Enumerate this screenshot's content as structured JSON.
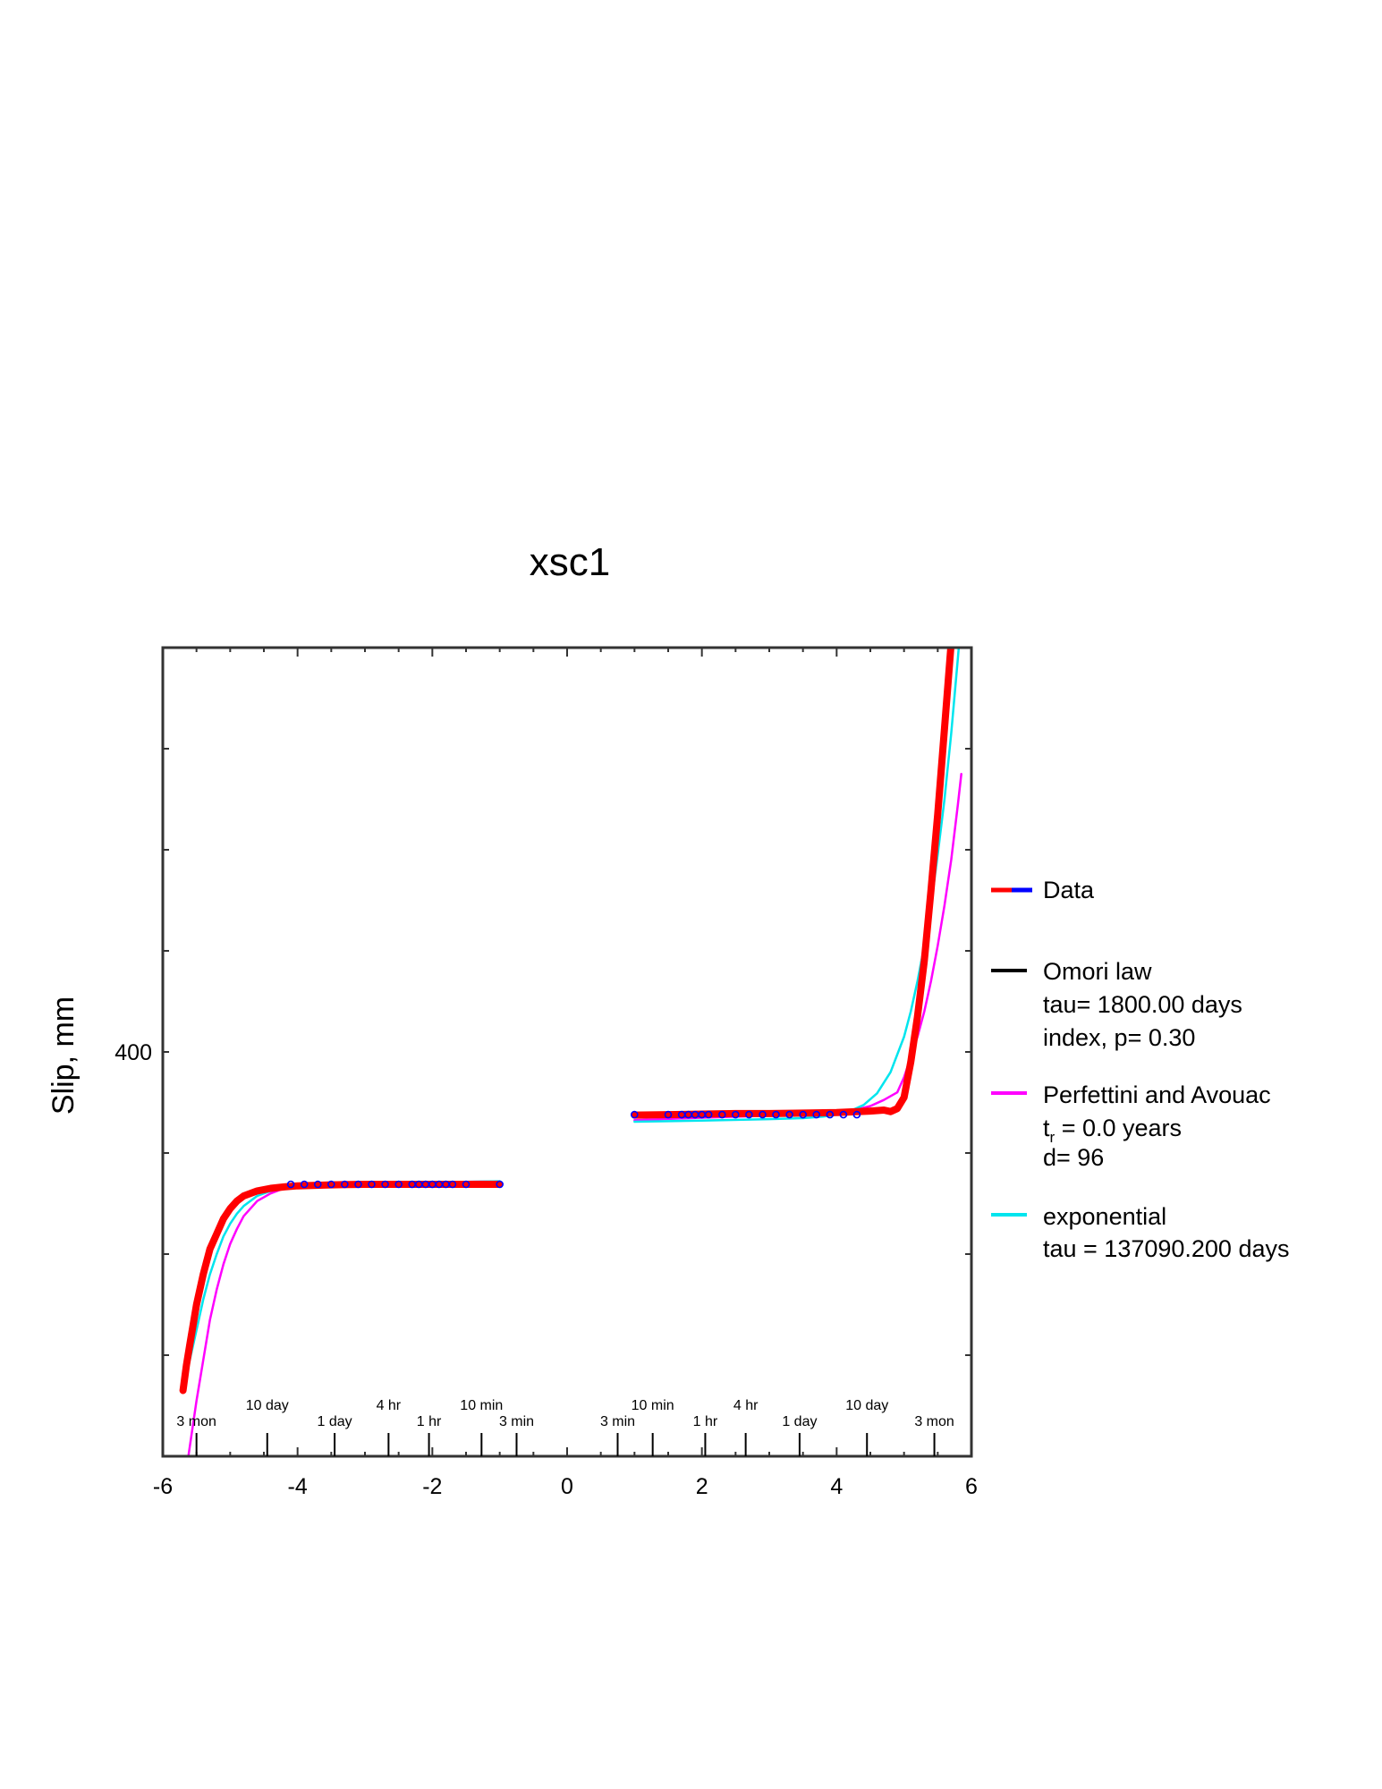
{
  "chart_data": {
    "type": "scatter",
    "title": "xsc1",
    "xlabel": "",
    "ylabel": "Slip, mm",
    "xlim": [
      -6,
      6
    ],
    "x_ticks": [
      -6,
      -4,
      -2,
      0,
      2,
      4,
      6
    ],
    "ylim": [
      320,
      480
    ],
    "y_tick_labels": [
      {
        "value": 400,
        "label": "400"
      }
    ],
    "grid": false,
    "legend_position": "right",
    "time_scale_labels": [
      {
        "x": -5.5,
        "row": "lower",
        "label": "3 mon"
      },
      {
        "x": -4.45,
        "row": "upper",
        "label": "10 day"
      },
      {
        "x": -3.45,
        "row": "lower",
        "label": "1 day"
      },
      {
        "x": -2.65,
        "row": "upper",
        "label": "4 hr"
      },
      {
        "x": -2.05,
        "row": "lower",
        "label": "1 hr"
      },
      {
        "x": -1.27,
        "row": "upper",
        "label": "10 min"
      },
      {
        "x": -0.75,
        "row": "lower",
        "label": "3 min"
      },
      {
        "x": 0.75,
        "row": "lower",
        "label": "3 min"
      },
      {
        "x": 1.27,
        "row": "upper",
        "label": "10 min"
      },
      {
        "x": 2.05,
        "row": "lower",
        "label": "1 hr"
      },
      {
        "x": 2.65,
        "row": "upper",
        "label": "4 hr"
      },
      {
        "x": 3.45,
        "row": "lower",
        "label": "1 day"
      },
      {
        "x": 4.45,
        "row": "upper",
        "label": "10 day"
      },
      {
        "x": 5.45,
        "row": "lower",
        "label": "3 mon"
      }
    ],
    "series": [
      {
        "name": "Data",
        "style": "thick-line-and-circles",
        "color": "#ff0000",
        "marker_color": "#0000ff",
        "segments": [
          {
            "x": [
              -5.7,
              -5.65,
              -5.6,
              -5.5,
              -5.4,
              -5.3,
              -5.2,
              -5.1,
              -5.0,
              -4.9,
              -4.8,
              -4.6,
              -4.4,
              -4.2,
              -4.0,
              -3.5,
              -3.0,
              -2.5,
              -2.0,
              -1.5,
              -1.0
            ],
            "y": [
              333,
              338,
              342,
              350,
              356,
              361,
              364,
              367,
              369,
              370.5,
              371.5,
              372.5,
              373,
              373.3,
              373.5,
              373.7,
              373.8,
              373.8,
              373.8,
              373.8,
              373.8
            ]
          },
          {
            "x": [
              1.0,
              1.5,
              2.0,
              2.5,
              3.0,
              3.5,
              4.0,
              4.3,
              4.5,
              4.7,
              4.8,
              4.9,
              5.0,
              5.1,
              5.2,
              5.3,
              5.4,
              5.5,
              5.6,
              5.7,
              5.8,
              5.85
            ],
            "y": [
              387.5,
              387.6,
              387.7,
              387.8,
              387.8,
              387.9,
              388,
              388.2,
              388.3,
              388.5,
              388.2,
              388.8,
              391,
              398,
              407,
              418,
              432,
              447,
              464,
              481,
              498,
              504
            ]
          }
        ]
      },
      {
        "name": "Omori law",
        "color": "#000000",
        "segments": []
      },
      {
        "name": "Perfettini and Avouac",
        "color": "#ff00ff",
        "segments": [
          {
            "x": [
              -5.62,
              -5.5,
              -5.4,
              -5.3,
              -5.2,
              -5.1,
              -5.0,
              -4.9,
              -4.8,
              -4.6,
              -4.4,
              -4.2,
              -4.0,
              -3.5,
              -3.0,
              -2.5,
              -2.0,
              -1.5,
              -1.0
            ],
            "y": [
              320,
              331,
              339,
              347,
              353,
              358,
              362,
              365,
              367.5,
              370.5,
              372,
              373,
              373.5,
              374,
              374.2,
              374.3,
              374.3,
              374.3,
              374.4
            ]
          },
          {
            "x": [
              1.0,
              2.0,
              3.0,
              3.5,
              4.0,
              4.3,
              4.5,
              4.7,
              4.9,
              5.0,
              5.1,
              5.2,
              5.3,
              5.4,
              5.5,
              5.6,
              5.7,
              5.8,
              5.85
            ],
            "y": [
              386.5,
              387,
              387.4,
              387.7,
              388.1,
              388.6,
              389.3,
              390.5,
              392,
              395,
              399,
              403,
              408,
              414,
              421,
              429,
              438,
              449,
              455
            ]
          }
        ]
      },
      {
        "name": "exponential",
        "color": "#00e5ee",
        "segments": [
          {
            "x": [
              -5.7,
              -5.6,
              -5.5,
              -5.4,
              -5.3,
              -5.2,
              -5.1,
              -5.0,
              -4.9,
              -4.8,
              -4.6,
              -4.4,
              -4.2,
              -4.0,
              -3.5,
              -3.0,
              -2.5,
              -2.0,
              -1.5,
              -1.0
            ],
            "y": [
              333,
              339,
              345,
              351,
              356,
              360,
              363.5,
              366,
              368,
              369.5,
              371.5,
              372.5,
              373.2,
              373.6,
              374,
              374.2,
              374.3,
              374.3,
              374.3,
              374.4
            ]
          },
          {
            "x": [
              1.0,
              2.0,
              3.0,
              3.5,
              3.8,
              4.0,
              4.2,
              4.4,
              4.6,
              4.8,
              5.0,
              5.1,
              5.2,
              5.3,
              5.4,
              5.5,
              5.6,
              5.7,
              5.8,
              5.85
            ],
            "y": [
              386.2,
              386.4,
              386.7,
              386.9,
              387.2,
              387.6,
              388.3,
              389.5,
              391.8,
              396,
              403,
              408,
              414,
              421,
              429,
              439,
              450,
              463,
              478,
              486
            ]
          }
        ]
      }
    ],
    "data_markers": [
      {
        "x": [
          -4.1,
          -3.9,
          -3.7,
          -3.5,
          -3.3,
          -3.1,
          -2.9,
          -2.7,
          -2.5,
          -2.3,
          -2.2,
          -2.1,
          -2.0,
          -1.9,
          -1.8,
          -1.7,
          -1.5,
          -1.0
        ],
        "y": 373.8
      },
      {
        "x": [
          1.0,
          1.5,
          1.7,
          1.8,
          1.9,
          2.0,
          2.1,
          2.3,
          2.5,
          2.7,
          2.9,
          3.1,
          3.3,
          3.5,
          3.7,
          3.9,
          4.1,
          4.3
        ],
        "y": 387.6
      }
    ],
    "legend": [
      {
        "label": "Data",
        "lines": []
      },
      {
        "label": "Omori law",
        "lines": [
          "tau= 1800.00 days",
          "index, p= 0.30"
        ]
      },
      {
        "label": "Perfettini and Avouac",
        "lines": [
          "t",
          "r",
          " = 0.0 years",
          "d= 96"
        ]
      },
      {
        "label": "exponential",
        "lines": [
          "tau = 137090.200 days"
        ]
      }
    ]
  }
}
